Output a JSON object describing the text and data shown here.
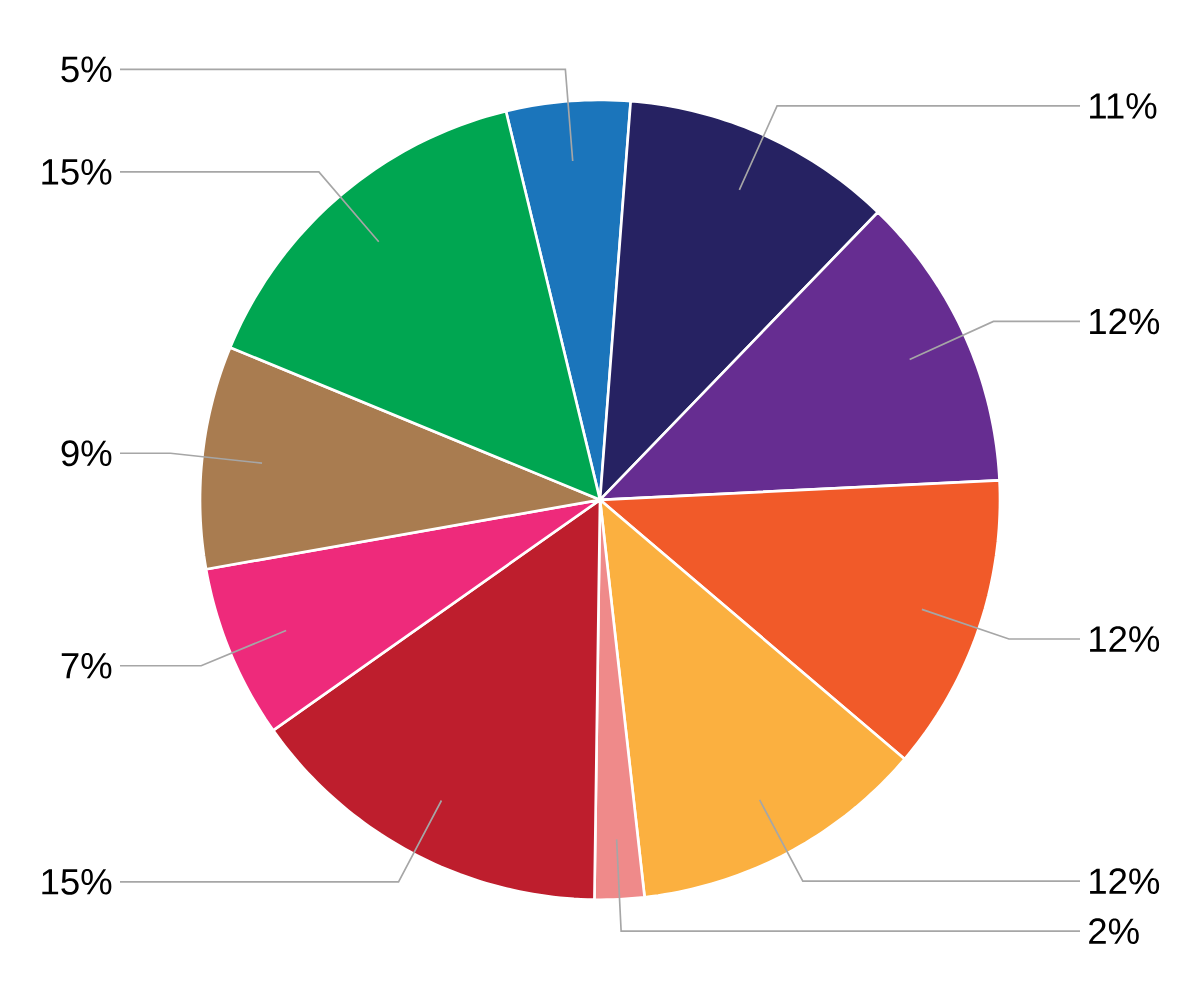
{
  "chart_data": {
    "type": "pie",
    "categories": [
      null,
      null,
      null,
      null,
      null,
      null,
      null,
      null,
      null,
      null
    ],
    "values": [
      5,
      11,
      12,
      12,
      12,
      2,
      15,
      7,
      9,
      15
    ],
    "colors": [
      "#1b75bb",
      "#262262",
      "#662d91",
      "#f15a29",
      "#fbb040",
      "#ef8a8a",
      "#be1e2d",
      "#ee2a7b",
      "#a97c50",
      "#00a651"
    ],
    "value_labels": [
      "5%",
      "11%",
      "12%",
      "12%",
      "12%",
      "2%",
      "15%",
      "7%",
      "9%",
      "15%"
    ]
  }
}
